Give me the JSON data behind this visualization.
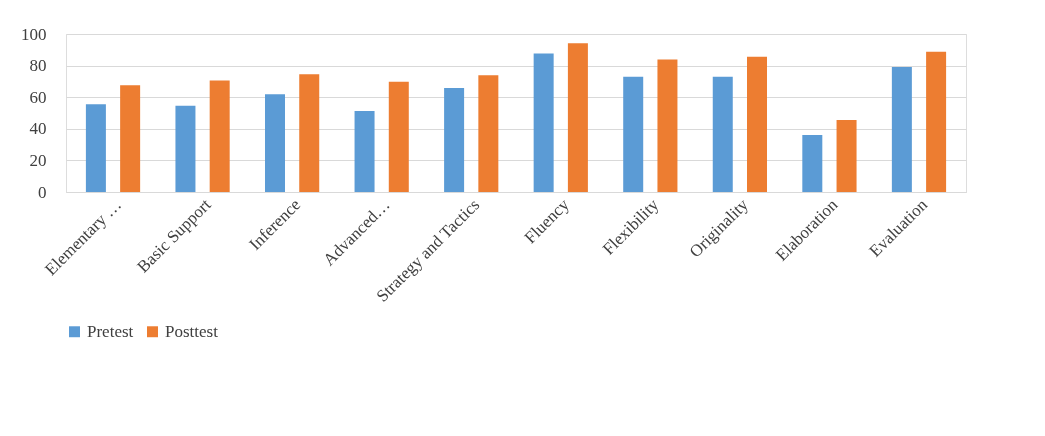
{
  "chart_data": {
    "type": "bar",
    "categories": [
      "Elementary …",
      "Basic Support",
      "Inference",
      "Advanced…",
      "Strategy and Tactics",
      "Fluency",
      "Flexibility",
      "Originality",
      "Elaboration",
      "Evaluation"
    ],
    "series": [
      {
        "name": "Pretest",
        "color": "#5b9bd5",
        "values": [
          55.5,
          54.6,
          61.9,
          51.2,
          65.8,
          87.6,
          73.0,
          73.0,
          36.0,
          79.1
        ]
      },
      {
        "name": "Posttest",
        "color": "#ed7d31",
        "values": [
          67.5,
          70.5,
          74.6,
          69.7,
          73.9,
          94.2,
          83.8,
          85.6,
          45.6,
          88.8
        ]
      }
    ],
    "ylim": [
      0,
      100
    ],
    "yticks": [
      0,
      20,
      40,
      60,
      80,
      100
    ],
    "grid": "y",
    "legend": "bottom"
  }
}
